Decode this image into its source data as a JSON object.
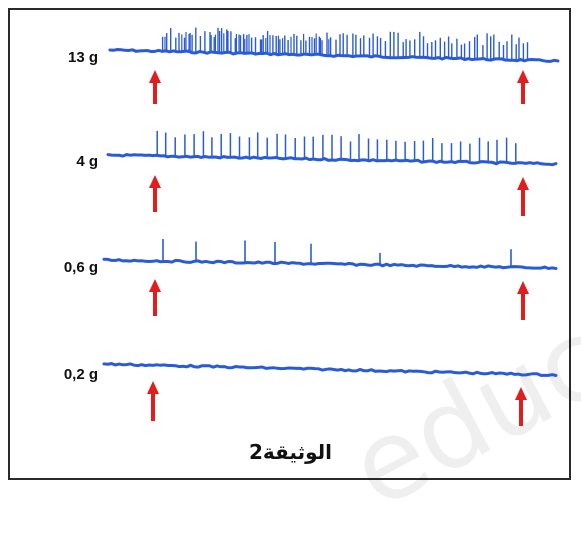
{
  "caption": "الوثيقة2",
  "colors": {
    "trace": "#2a5bd7",
    "arrow": "#e01e1e",
    "border": "#2a2a2a"
  },
  "rows": [
    {
      "label": "13 g"
    },
    {
      "label": "4 g"
    },
    {
      "label": "0,6 g"
    },
    {
      "label": "0,2 g"
    }
  ]
}
